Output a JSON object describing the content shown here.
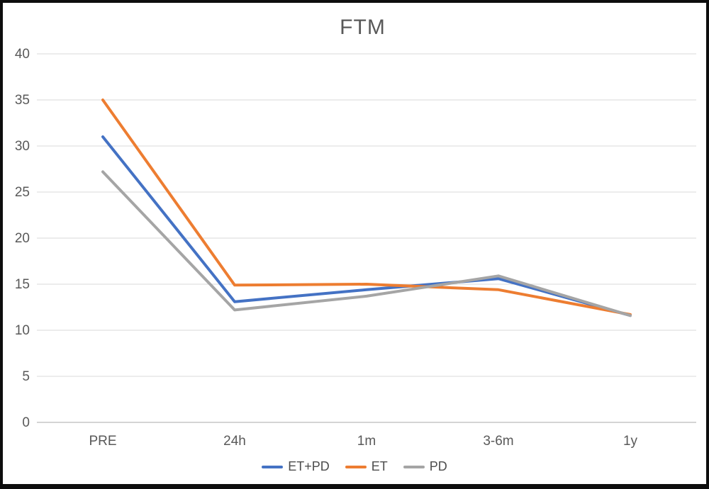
{
  "window": {
    "background_color": "#ffffff",
    "frame_color": "#0d0d0d"
  },
  "chart_data": {
    "type": "line",
    "title": "FTM",
    "categories": [
      "PRE",
      "24h",
      "1m",
      "3-6m",
      "1y"
    ],
    "series": [
      {
        "name": "ET+PD",
        "color": "#4472C4",
        "values": [
          31,
          13.1,
          14.4,
          15.6,
          11.6
        ]
      },
      {
        "name": "ET",
        "color": "#ED7D31",
        "values": [
          35,
          14.9,
          15.0,
          14.4,
          11.7
        ]
      },
      {
        "name": "PD",
        "color": "#A5A5A5",
        "values": [
          27.2,
          12.2,
          13.7,
          15.9,
          11.6
        ]
      }
    ],
    "xlabel": "",
    "ylabel": "",
    "ylim": [
      0,
      40
    ],
    "yticks": [
      0,
      5,
      10,
      15,
      20,
      25,
      30,
      35,
      40
    ],
    "grid": "horizontal",
    "gridline_color": "#d9d9d9",
    "axis_text_color": "#595959",
    "legend_position": "bottom-center"
  }
}
